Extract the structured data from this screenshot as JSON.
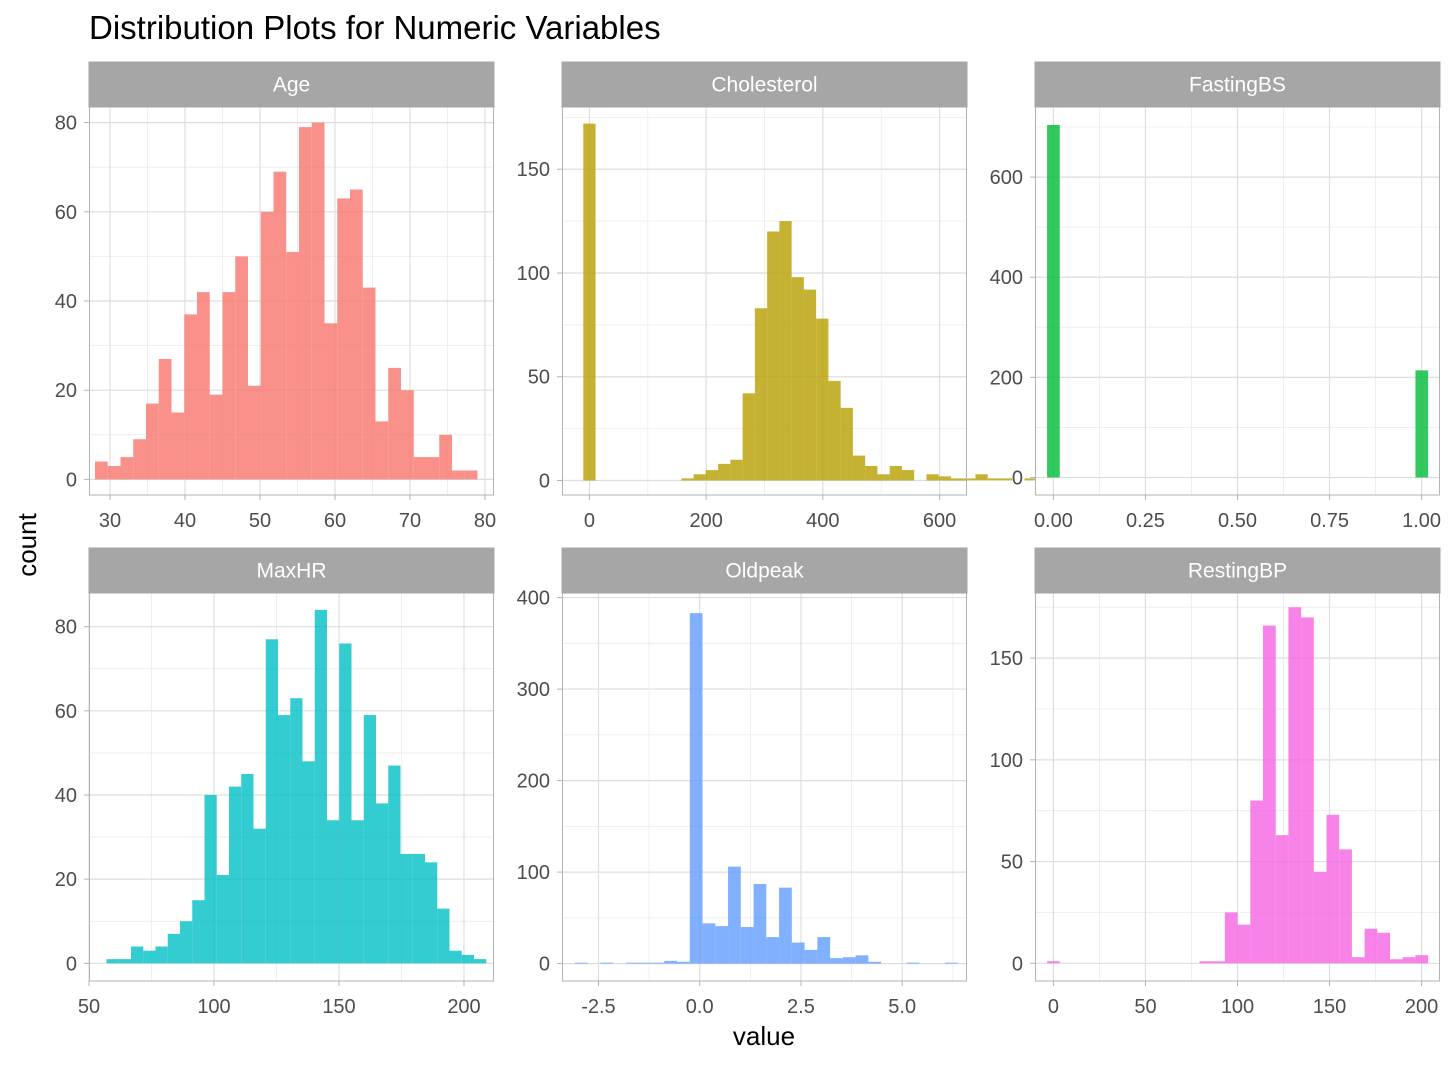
{
  "chart_data": {
    "type": "bar",
    "title": "Distribution Plots for Numeric Variables",
    "xlabel": "value",
    "ylabel": "count",
    "grid": true,
    "legend": "none",
    "panels": [
      {
        "name": "Age",
        "color": "#F8766D",
        "xlim": [
          27.2,
          81.2
        ],
        "ylim": [
          -3.5,
          83.5
        ],
        "xticks": [
          30,
          40,
          50,
          60,
          70,
          80
        ],
        "xtick_labels": [
          "30",
          "40",
          "50",
          "60",
          "70",
          "80"
        ],
        "yticks": [
          0,
          20,
          40,
          60,
          80
        ],
        "ytick_labels": [
          "0",
          "20",
          "40",
          "60",
          "80"
        ],
        "bins": {
          "start": 28,
          "width": 1.7,
          "values": [
            4,
            3,
            5,
            9,
            17,
            27,
            15,
            37,
            42,
            19,
            42,
            50,
            21,
            60,
            69,
            51,
            79,
            80,
            35,
            63,
            65,
            43,
            13,
            25,
            20,
            5,
            5,
            10,
            2,
            2
          ]
        }
      },
      {
        "name": "Cholesterol",
        "color": "#B79F00",
        "xlim": [
          -47,
          647
        ],
        "ylim": [
          -7,
          180
        ],
        "xticks": [
          0,
          200,
          400,
          600
        ],
        "xtick_labels": [
          "0",
          "200",
          "400",
          "600"
        ],
        "yticks": [
          0,
          50,
          100,
          150
        ],
        "ytick_labels": [
          "0",
          "50",
          "100",
          "150"
        ],
        "bins": {
          "start": -10.5,
          "width": 21,
          "values": [
            172,
            0,
            0,
            0,
            0,
            0,
            0,
            0,
            1,
            3,
            5,
            8,
            10,
            42,
            83,
            120,
            125,
            98,
            92,
            78,
            48,
            35,
            12,
            7,
            3,
            7,
            5,
            0,
            3,
            2,
            1,
            1,
            3,
            1,
            1,
            0,
            1,
            0,
            1
          ]
        }
      },
      {
        "name": "FastingBS",
        "color": "#00BA38",
        "xlim": [
          -0.05,
          1.05
        ],
        "ylim": [
          -35,
          740
        ],
        "xticks": [
          0,
          0.25,
          0.5,
          0.75,
          1
        ],
        "xtick_labels": [
          "0.00",
          "0.25",
          "0.50",
          "0.75",
          "1.00"
        ],
        "yticks": [
          0,
          200,
          400,
          600
        ],
        "ytick_labels": [
          "0",
          "200",
          "400",
          "600"
        ],
        "bins": {
          "start": -0.0172,
          "width": 0.0345,
          "values": [
            704,
            0,
            0,
            0,
            0,
            0,
            0,
            0,
            0,
            0,
            0,
            0,
            0,
            0,
            0,
            0,
            0,
            0,
            0,
            0,
            0,
            0,
            0,
            0,
            0,
            0,
            0,
            0,
            0,
            214
          ]
        }
      },
      {
        "name": "MaxHR",
        "color": "#00BFC4",
        "xlim": [
          50,
          212
        ],
        "ylim": [
          -4.2,
          88
        ],
        "xticks": [
          50,
          100,
          150,
          200
        ],
        "xtick_labels": [
          "50",
          "100",
          "150",
          "200"
        ],
        "yticks": [
          0,
          20,
          40,
          60,
          80
        ],
        "ytick_labels": [
          "0",
          "20",
          "40",
          "60",
          "80"
        ],
        "bins": {
          "start": 57,
          "width": 4.9,
          "values": [
            1,
            1,
            4,
            3,
            4,
            7,
            10,
            15,
            40,
            21,
            42,
            45,
            32,
            77,
            59,
            63,
            48,
            84,
            34,
            76,
            34,
            59,
            38,
            47,
            26,
            26,
            24,
            13,
            3,
            2,
            1
          ]
        }
      },
      {
        "name": "Oldpeak",
        "color": "#619CFF",
        "xlim": [
          -3.4,
          6.6
        ],
        "ylim": [
          -19,
          405
        ],
        "xticks": [
          -2.5,
          0,
          2.5,
          5
        ],
        "xtick_labels": [
          "-2.5",
          "0.0",
          "2.5",
          "5.0"
        ],
        "yticks": [
          0,
          100,
          200,
          300,
          400
        ],
        "ytick_labels": [
          "0",
          "100",
          "200",
          "300",
          "400"
        ],
        "bins": {
          "start": -3.08,
          "width": 0.315,
          "values": [
            1,
            0,
            1,
            0,
            1,
            1,
            1,
            3,
            2,
            383,
            44,
            41,
            106,
            40,
            87,
            29,
            83,
            23,
            15,
            29,
            6,
            7,
            9,
            2,
            0,
            0,
            1,
            0,
            0,
            1
          ]
        }
      },
      {
        "name": "RestingBP",
        "color": "#F564E3",
        "xlim": [
          -10,
          210
        ],
        "ylim": [
          -8.7,
          182
        ],
        "xticks": [
          0,
          50,
          100,
          150,
          200
        ],
        "xtick_labels": [
          "0",
          "50",
          "100",
          "150",
          "200"
        ],
        "yticks": [
          0,
          50,
          100,
          150
        ],
        "ytick_labels": [
          "0",
          "50",
          "100",
          "150"
        ],
        "bins": {
          "start": -3.45,
          "width": 6.9,
          "values": [
            1,
            0,
            0,
            0,
            0,
            0,
            0,
            0,
            0,
            0,
            0,
            0,
            1,
            1,
            25,
            19,
            80,
            166,
            63,
            175,
            170,
            45,
            73,
            56,
            3,
            17,
            15,
            2,
            3,
            4
          ]
        }
      }
    ]
  }
}
